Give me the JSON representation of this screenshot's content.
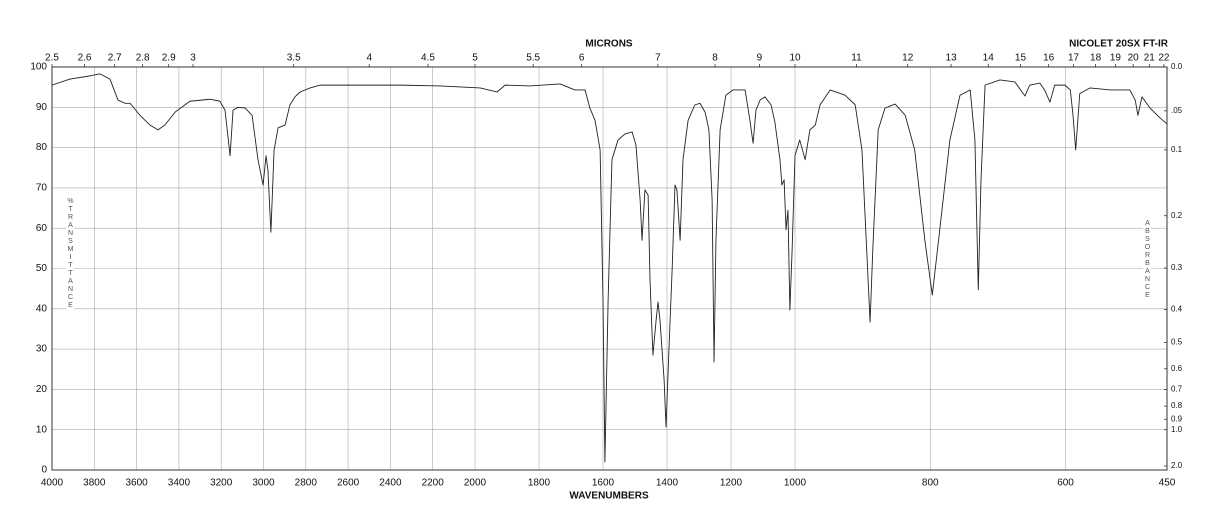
{
  "chart_data": {
    "type": "line",
    "title": "MICRONS",
    "instrument": "NICOLET 20SX FT-IR",
    "xlabel": "WAVENUMBERS",
    "ylabel": "%TRANSMITTANCE",
    "y2label": "ABSORBANCE",
    "color": "#222222",
    "grid": true,
    "xlim": [
      4000,
      450
    ],
    "ylim": [
      0,
      100
    ],
    "xticks": [
      4000,
      3800,
      3600,
      3400,
      3200,
      3000,
      2800,
      2600,
      2400,
      2200,
      2000,
      1800,
      1600,
      1400,
      1200,
      1000,
      800,
      600,
      450
    ],
    "yticks": [
      0,
      10,
      20,
      30,
      40,
      50,
      60,
      70,
      80,
      90,
      100
    ],
    "x2ticks": [
      2.5,
      2.6,
      2.7,
      2.8,
      2.9,
      3,
      3.5,
      4,
      4.5,
      5,
      5.5,
      6,
      7,
      8,
      9,
      10,
      11,
      12,
      13,
      14,
      15,
      16,
      17,
      18,
      19,
      20,
      21,
      22
    ],
    "y2scale": "absorbance",
    "y2ticks": [
      {
        "value": 0,
        "label": "0.0"
      },
      {
        "value": 0.05,
        "label": ".05"
      },
      0.1,
      0.2,
      0.3,
      0.4,
      0.5,
      0.6,
      0.7,
      0.8,
      0.9,
      {
        "value": 1,
        "label": "1.0"
      },
      {
        "value": 2,
        "label": "2.0"
      }
    ],
    "x": [
      4000,
      3915,
      3820,
      3773,
      3726,
      3688,
      3655,
      3631,
      3584,
      3537,
      3499,
      3466,
      3418,
      3348,
      3253,
      3206,
      3182,
      3158,
      3144,
      3121,
      3087,
      3054,
      3026,
      3002,
      2988,
      2979,
      2965,
      2950,
      2931,
      2898,
      2875,
      2851,
      2827,
      2780,
      2733,
      2591,
      2355,
      2166,
      1984,
      1931,
      1906,
      1828,
      1734,
      1688,
      1656,
      1641,
      1625,
      1609,
      1600,
      1594,
      1584,
      1572,
      1553,
      1531,
      1509,
      1497,
      1484,
      1478,
      1469,
      1459,
      1453,
      1444,
      1434,
      1428,
      1422,
      1409,
      1403,
      1394,
      1384,
      1375,
      1369,
      1359,
      1350,
      1334,
      1313,
      1297,
      1281,
      1269,
      1259,
      1253,
      1247,
      1234,
      1216,
      1194,
      1172,
      1156,
      1141,
      1131,
      1122,
      1109,
      1094,
      1075,
      1063,
      1047,
      1041,
      1034,
      1028,
      1022,
      1016,
      1009,
      1000,
      993,
      985,
      978,
      970,
      963,
      948,
      926,
      911,
      901,
      894,
      889,
      885,
      877,
      867,
      852,
      837,
      823,
      808,
      797,
      786,
      771,
      756,
      741,
      734,
      729,
      725,
      719,
      697,
      675,
      660,
      653,
      638,
      631,
      623,
      616,
      601,
      593,
      589,
      585,
      579,
      564,
      534,
      505,
      497,
      493,
      487,
      475,
      460,
      450
    ],
    "values": [
      95.5,
      97,
      97.8,
      98.3,
      97,
      91.8,
      91,
      91,
      88,
      85.6,
      84.4,
      85.6,
      88.8,
      91.5,
      92,
      91.5,
      89.3,
      78,
      89.3,
      90,
      89.8,
      88,
      77,
      70.7,
      78,
      74.4,
      59,
      79.4,
      84.9,
      85.6,
      90.6,
      92.6,
      93.8,
      94.8,
      95.5,
      95.5,
      95.5,
      95.3,
      94.8,
      93.8,
      95.5,
      95.3,
      95.8,
      94.3,
      94.3,
      89.8,
      86.8,
      79.4,
      42,
      2,
      42.2,
      77,
      81.9,
      83.4,
      83.9,
      80.6,
      67,
      57,
      69.5,
      68.2,
      47,
      28.5,
      37.2,
      41.7,
      37.2,
      22.3,
      10.7,
      29.8,
      49.6,
      70.7,
      69.5,
      57,
      77,
      86.8,
      90.6,
      91,
      88.8,
      84.4,
      67,
      26.8,
      57.1,
      84.4,
      93,
      94.3,
      94.3,
      94.3,
      86.8,
      81.1,
      89.3,
      91.8,
      92.6,
      90.6,
      86.4,
      77,
      70.7,
      72,
      59.6,
      64.5,
      39.7,
      54.6,
      78,
      81.9,
      77,
      84.4,
      85.6,
      90.6,
      94.3,
      93,
      90.6,
      79.4,
      54.6,
      36.7,
      54.6,
      84.4,
      89.8,
      90.8,
      88,
      79.4,
      57,
      43.4,
      59.6,
      81.9,
      93,
      94.3,
      81.9,
      44.7,
      72,
      95.5,
      96.8,
      96.3,
      92.8,
      95.5,
      96,
      94.3,
      91.3,
      95.5,
      95.5,
      94.3,
      88.1,
      79.4,
      93.4,
      94.8,
      94.3,
      94.3,
      91.8,
      88,
      92.6,
      89.8,
      87.3,
      85.9
    ]
  }
}
